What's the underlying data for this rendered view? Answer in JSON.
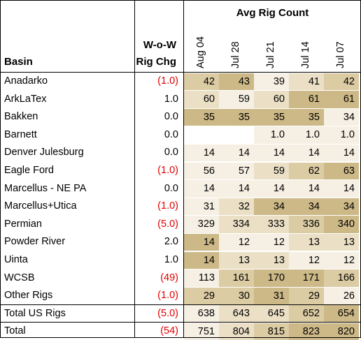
{
  "header": {
    "group_title": "Avg Rig Count",
    "basin_label": "Basin",
    "chg_label_line1": "W-o-W",
    "chg_label_line2": "Rig Chg",
    "weeks": [
      "Aug 04",
      "Jul 28",
      "Jul 21",
      "Jul 14",
      "Jul 07"
    ]
  },
  "rows": [
    {
      "basin": "Anadarko",
      "chg": "(1.0)",
      "neg": true,
      "values": [
        "42",
        "43",
        "39",
        "41",
        "42"
      ],
      "shade": [
        3,
        4,
        1,
        2,
        3
      ]
    },
    {
      "basin": "ArkLaTex",
      "chg": "1.0",
      "neg": false,
      "values": [
        "60",
        "59",
        "60",
        "61",
        "61"
      ],
      "shade": [
        2,
        1,
        2,
        4,
        4
      ]
    },
    {
      "basin": "Bakken",
      "chg": "0.0",
      "neg": false,
      "values": [
        "35",
        "35",
        "35",
        "35",
        "34"
      ],
      "shade": [
        4,
        4,
        4,
        4,
        1
      ]
    },
    {
      "basin": "Barnett",
      "chg": "0.0",
      "neg": false,
      "values": [
        "",
        "",
        "1.0",
        "1.0",
        "1.0"
      ],
      "shade": [
        0,
        0,
        1,
        1,
        1
      ]
    },
    {
      "basin": "Denver Julesburg",
      "chg": "0.0",
      "neg": false,
      "values": [
        "14",
        "14",
        "14",
        "14",
        "14"
      ],
      "shade": [
        1,
        1,
        1,
        1,
        1
      ]
    },
    {
      "basin": "Eagle Ford",
      "chg": "(1.0)",
      "neg": true,
      "values": [
        "56",
        "57",
        "59",
        "62",
        "63"
      ],
      "shade": [
        1,
        1,
        2,
        3,
        4
      ]
    },
    {
      "basin": "Marcellus - NE PA",
      "chg": "0.0",
      "neg": false,
      "values": [
        "14",
        "14",
        "14",
        "14",
        "14"
      ],
      "shade": [
        1,
        1,
        1,
        1,
        1
      ]
    },
    {
      "basin": "Marcellus+Utica",
      "chg": "(1.0)",
      "neg": true,
      "values": [
        "31",
        "32",
        "34",
        "34",
        "34"
      ],
      "shade": [
        1,
        2,
        4,
        4,
        4
      ]
    },
    {
      "basin": "Permian",
      "chg": "(5.0)",
      "neg": true,
      "values": [
        "329",
        "334",
        "333",
        "336",
        "340"
      ],
      "shade": [
        1,
        2,
        2,
        3,
        4
      ]
    },
    {
      "basin": "Powder River",
      "chg": "2.0",
      "neg": false,
      "values": [
        "14",
        "12",
        "12",
        "13",
        "13"
      ],
      "shade": [
        4,
        1,
        1,
        2,
        2
      ]
    },
    {
      "basin": "Uinta",
      "chg": "1.0",
      "neg": false,
      "values": [
        "14",
        "13",
        "13",
        "12",
        "12"
      ],
      "shade": [
        4,
        2,
        2,
        1,
        1
      ]
    },
    {
      "basin": "WCSB",
      "chg": "(49)",
      "neg": true,
      "values": [
        "113",
        "161",
        "170",
        "171",
        "166"
      ],
      "shade": [
        1,
        3,
        4,
        4,
        3
      ]
    },
    {
      "basin": "Other Rigs",
      "chg": "(1.0)",
      "neg": true,
      "values": [
        "29",
        "30",
        "31",
        "29",
        "26"
      ],
      "shade": [
        3,
        3,
        4,
        3,
        1
      ]
    },
    {
      "basin": "Total US Rigs",
      "chg": "(5.0)",
      "neg": true,
      "values": [
        "638",
        "643",
        "645",
        "652",
        "654"
      ],
      "shade": [
        1,
        2,
        2,
        3,
        4
      ]
    },
    {
      "basin": "Total",
      "chg": "(54)",
      "neg": true,
      "values": [
        "751",
        "804",
        "815",
        "823",
        "820"
      ],
      "shade": [
        1,
        2,
        3,
        4,
        4
      ]
    }
  ],
  "colors": {
    "shade_0": "#ffffff",
    "shade_1": "#f6f0e4",
    "shade_2": "#ebe0c6",
    "shade_3": "#dccca4",
    "shade_4": "#cdb987",
    "negative_text": "#e00000"
  }
}
